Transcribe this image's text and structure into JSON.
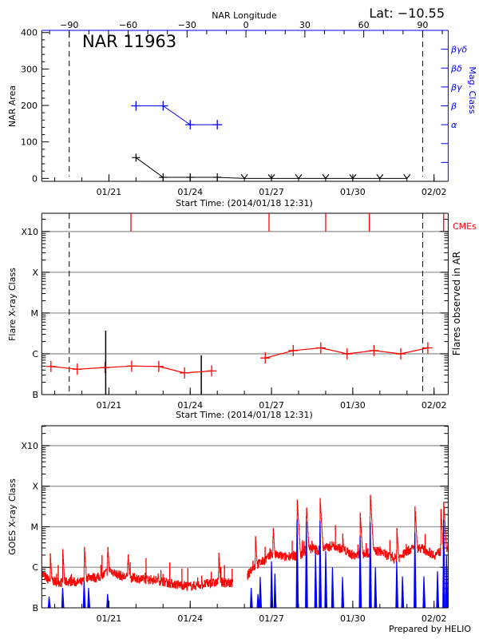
{
  "header": {
    "lat_label": "Lat: −10.55",
    "top_axis_label": "NAR Longitude"
  },
  "footer": {
    "credit": "Prepared by HELIO"
  },
  "colors": {
    "area": "#000000",
    "mag_class": "#0000ff",
    "flare": "#ff0000",
    "cme": "#ff0000",
    "goes_long": "#ff0000",
    "goes_short": "#0000ff",
    "grid": "#999999"
  },
  "chart_data": [
    {
      "type": "line",
      "title": "NAR 11963",
      "xlabel": "Start Time: (2014/01/18 12:31)",
      "x_range": [
        "2014-01-18T12:31",
        "2014-02-02T12:31"
      ],
      "x_ticks": [
        {
          "t": "2014-01-21T00:00",
          "label": "01/21"
        },
        {
          "t": "2014-01-24T00:00",
          "label": "01/24"
        },
        {
          "t": "2014-01-27T00:00",
          "label": "01/27"
        },
        {
          "t": "2014-01-30T00:00",
          "label": "01/30"
        },
        {
          "t": "2014-02-02T00:00",
          "label": "02/02"
        }
      ],
      "top_axis": {
        "label": "NAR Longitude",
        "range": [
          -104,
          103
        ],
        "ticks": [
          {
            "v": -90,
            "label": "−90"
          },
          {
            "v": -60,
            "label": "−60"
          },
          {
            "v": -30,
            "label": "−30"
          },
          {
            "v": 0,
            "label": "0"
          },
          {
            "v": 30,
            "label": "30"
          },
          {
            "v": 60,
            "label": "60"
          },
          {
            "v": 90,
            "label": "90"
          }
        ]
      },
      "limb_longitudes": [
        -90,
        90
      ],
      "ylabel": "NAR Area",
      "ylim": [
        -8,
        406
      ],
      "y_ticks": [
        {
          "v": 0,
          "label": "0"
        },
        {
          "v": 100,
          "label": "100"
        },
        {
          "v": 200,
          "label": "200"
        },
        {
          "v": 300,
          "label": "300"
        },
        {
          "v": 400,
          "label": "400"
        }
      ],
      "y2label": "Mag. Class",
      "y2lim": [
        0,
        8
      ],
      "y2_ticks": [
        {
          "v": 1,
          "label": ""
        },
        {
          "v": 2,
          "label": ""
        },
        {
          "v": 3,
          "label": "α"
        },
        {
          "v": 4,
          "label": "β"
        },
        {
          "v": 5,
          "label": "βγ"
        },
        {
          "v": 6,
          "label": "βδ"
        },
        {
          "v": 7,
          "label": "βγδ"
        }
      ],
      "area": [
        {
          "t": "2014-01-22T00:00",
          "v": 57
        },
        {
          "t": "2014-01-23T00:00",
          "v": 3
        },
        {
          "t": "2014-01-24T00:00",
          "v": 3
        },
        {
          "t": "2014-01-25T00:00",
          "v": 3
        },
        {
          "t": "2014-01-26T00:00",
          "v": 0
        },
        {
          "t": "2014-01-27T00:00",
          "v": 0
        },
        {
          "t": "2014-01-28T00:00",
          "v": 0
        },
        {
          "t": "2014-01-29T00:00",
          "v": 0
        },
        {
          "t": "2014-01-30T00:00",
          "v": 0
        },
        {
          "t": "2014-01-31T00:00",
          "v": 0
        },
        {
          "t": "2014-02-01T00:00",
          "v": 0
        }
      ],
      "mag_class": [
        {
          "t": "2014-01-22T00:00",
          "v": 4
        },
        {
          "t": "2014-01-23T00:00",
          "v": 4
        },
        {
          "t": "2014-01-24T00:00",
          "v": 3
        },
        {
          "t": "2014-01-25T00:00",
          "v": 3
        }
      ]
    },
    {
      "type": "line",
      "xlabel": "Start Time: (2014/01/18 12:31)",
      "x_range": [
        "2014-01-18T12:31",
        "2014-02-02T12:31"
      ],
      "x_ticks": [
        {
          "t": "2014-01-21T00:00",
          "label": "01/21"
        },
        {
          "t": "2014-01-24T00:00",
          "label": "01/24"
        },
        {
          "t": "2014-01-27T00:00",
          "label": "01/27"
        },
        {
          "t": "2014-01-30T00:00",
          "label": "01/30"
        },
        {
          "t": "2014-02-02T00:00",
          "label": "02/02"
        }
      ],
      "ylabel": "Flare X-ray Class",
      "y2label": "Flares observed in AR",
      "yscale": "log",
      "ylim": [
        1e-07,
        0.0028
      ],
      "y_ticks": [
        {
          "v": 1e-07,
          "label": "B"
        },
        {
          "v": 1e-06,
          "label": "C"
        },
        {
          "v": 1e-05,
          "label": "M"
        },
        {
          "v": 0.0001,
          "label": "X"
        },
        {
          "v": 0.001,
          "label": "X10"
        }
      ],
      "grid": true,
      "limb_longitudes": [
        -90,
        90
      ],
      "flare_background": [
        {
          "t": "2014-01-18T20:40",
          "v": 4.9e-07
        },
        {
          "t": "2014-01-19T20:00",
          "v": 4.2e-07
        },
        {
          "t": "2014-01-20T20:30",
          "v": 4.6e-07
        },
        {
          "t": "2014-01-21T20:10",
          "v": 5e-07
        },
        {
          "t": "2014-01-22T20:10",
          "v": 4.9e-07
        },
        {
          "t": "2014-01-23T19:00",
          "v": 3.4e-07
        },
        {
          "t": "2014-01-24T19:00",
          "v": 3.8e-07
        },
        null,
        {
          "t": "2014-01-26T18:30",
          "v": 7.9e-07
        },
        {
          "t": "2014-01-27T19:15",
          "v": 1.2e-06
        },
        {
          "t": "2014-01-28T19:40",
          "v": 1.4e-06
        },
        {
          "t": "2014-01-29T19:00",
          "v": 1e-06
        },
        {
          "t": "2014-01-30T18:45",
          "v": 1.2e-06
        },
        {
          "t": "2014-01-31T18:30",
          "v": 1e-06
        },
        {
          "t": "2014-02-01T18:30",
          "v": 1.4e-06
        }
      ],
      "ar_flares": [
        {
          "t": "2014-01-20T21:10",
          "v": 3.7e-06
        },
        {
          "t": "2014-01-24T09:50",
          "v": 9.1e-07
        }
      ],
      "cme_label": "CMEs",
      "cmes": [
        "2014-01-21T19:30",
        "2014-01-26T21:50",
        "2014-01-29T00:00",
        "2014-01-30T14:40",
        "2014-02-02T08:30"
      ]
    },
    {
      "type": "line",
      "x_range": [
        "2014-01-18T12:31",
        "2014-02-02T12:31"
      ],
      "x_ticks": [
        {
          "t": "2014-01-21T00:00",
          "label": "01/21"
        },
        {
          "t": "2014-01-24T00:00",
          "label": "01/24"
        },
        {
          "t": "2014-01-27T00:00",
          "label": "01/27"
        },
        {
          "t": "2014-01-30T00:00",
          "label": "01/30"
        },
        {
          "t": "2014-02-02T00:00",
          "label": "02/02"
        }
      ],
      "ylabel": "GOES X-ray Class",
      "yscale": "log",
      "ylim": [
        1e-07,
        0.0031
      ],
      "y_ticks": [
        {
          "v": 1e-07,
          "label": "B"
        },
        {
          "v": 1e-06,
          "label": "C"
        },
        {
          "v": 1e-05,
          "label": "M"
        },
        {
          "v": 0.0001,
          "label": "X"
        },
        {
          "v": 0.001,
          "label": "X10"
        }
      ],
      "grid": true,
      "coverage": [
        [
          "2014-01-18T12:31",
          "2014-01-25T14:00"
        ],
        [
          "2014-01-26T02:30",
          "2014-02-02T12:31"
        ]
      ],
      "long_baseline": [
        [
          "2014-01-18T12:31",
          7e-07
        ],
        [
          "2014-01-18T18:00",
          5e-07
        ],
        [
          "2014-01-19T00:00",
          4.5e-07
        ],
        [
          "2014-01-19T06:00",
          4.2e-07
        ],
        [
          "2014-01-19T12:00",
          4.5e-07
        ],
        [
          "2014-01-19T18:00",
          4.3e-07
        ],
        [
          "2014-01-20T00:00",
          4.3e-07
        ],
        [
          "2014-01-20T06:00",
          6e-07
        ],
        [
          "2014-01-20T12:00",
          5.5e-07
        ],
        [
          "2014-01-20T18:00",
          6e-07
        ],
        [
          "2014-01-21T00:00",
          9e-07
        ],
        [
          "2014-01-21T06:00",
          7e-07
        ],
        [
          "2014-01-21T12:00",
          6e-07
        ],
        [
          "2014-01-21T18:00",
          5.5e-07
        ],
        [
          "2014-01-22T00:00",
          5.5e-07
        ],
        [
          "2014-01-22T06:00",
          5e-07
        ],
        [
          "2014-01-22T12:00",
          5e-07
        ],
        [
          "2014-01-22T18:00",
          4.8e-07
        ],
        [
          "2014-01-23T00:00",
          4.5e-07
        ],
        [
          "2014-01-23T06:00",
          4e-07
        ],
        [
          "2014-01-23T12:00",
          3.8e-07
        ],
        [
          "2014-01-23T18:00",
          3.6e-07
        ],
        [
          "2014-01-24T00:00",
          3.4e-07
        ],
        [
          "2014-01-24T06:00",
          3.6e-07
        ],
        [
          "2014-01-24T12:00",
          3.8e-07
        ],
        [
          "2014-01-24T18:00",
          4e-07
        ],
        [
          "2014-01-25T00:00",
          4.3e-07
        ],
        [
          "2014-01-25T06:00",
          4.2e-07
        ],
        [
          "2014-01-25T14:00",
          4e-07
        ],
        [
          "2014-01-26T02:30",
          6e-07
        ],
        [
          "2014-01-26T06:00",
          9e-07
        ],
        [
          "2014-01-26T12:00",
          1.2e-06
        ],
        [
          "2014-01-26T18:00",
          1.5e-06
        ],
        [
          "2014-01-27T00:00",
          2e-06
        ],
        [
          "2014-01-27T06:00",
          2e-06
        ],
        [
          "2014-01-27T12:00",
          1.8e-06
        ],
        [
          "2014-01-27T18:00",
          2e-06
        ],
        [
          "2014-01-28T00:00",
          1.8e-06
        ],
        [
          "2014-01-28T06:00",
          2.5e-06
        ],
        [
          "2014-01-28T12:00",
          3e-06
        ],
        [
          "2014-01-28T18:00",
          2.5e-06
        ],
        [
          "2014-01-29T00:00",
          3e-06
        ],
        [
          "2014-01-29T06:00",
          3.5e-06
        ],
        [
          "2014-01-29T12:00",
          3e-06
        ],
        [
          "2014-01-29T18:00",
          2.5e-06
        ],
        [
          "2014-01-30T00:00",
          2e-06
        ],
        [
          "2014-01-30T06:00",
          2e-06
        ],
        [
          "2014-01-30T12:00",
          2.2e-06
        ],
        [
          "2014-01-30T18:00",
          2.5e-06
        ],
        [
          "2014-01-31T00:00",
          2.5e-06
        ],
        [
          "2014-01-31T06:00",
          2e-06
        ],
        [
          "2014-01-31T12:00",
          1.6e-06
        ],
        [
          "2014-01-31T18:00",
          1.8e-06
        ],
        [
          "2014-02-01T00:00",
          2.5e-06
        ],
        [
          "2014-02-01T06:00",
          3e-06
        ],
        [
          "2014-02-01T12:00",
          3e-06
        ],
        [
          "2014-02-01T18:00",
          2.5e-06
        ],
        [
          "2014-02-02T00:00",
          2e-06
        ],
        [
          "2014-02-02T06:00",
          2.5e-06
        ],
        [
          "2014-02-02T12:31",
          3e-06
        ]
      ],
      "long_peaks": [
        [
          "2014-01-18T20:00",
          2.2e-06
        ],
        [
          "2014-01-19T07:00",
          2.8e-06
        ],
        [
          "2014-01-20T02:10",
          3.5e-06
        ],
        [
          "2014-01-20T22:50",
          3.8e-06
        ],
        [
          "2014-01-21T16:50",
          2.5e-06
        ],
        [
          "2014-01-25T01:10",
          2.5e-06
        ],
        [
          "2014-01-26T09:40",
          6.3e-06
        ],
        [
          "2014-01-27T01:20",
          1.1e-05
        ],
        [
          "2014-01-27T22:40",
          5e-05
        ],
        [
          "2014-01-28T06:50",
          3.5e-05
        ],
        [
          "2014-01-28T19:00",
          5e-05
        ],
        [
          "2014-01-29T14:55",
          7.3e-06
        ],
        [
          "2014-01-30T06:30",
          2.2e-05
        ],
        [
          "2014-01-30T15:25",
          6.6e-05
        ],
        [
          "2014-01-31T14:55",
          1e-05
        ],
        [
          "2014-02-01T07:00",
          3.1e-05
        ],
        [
          "2014-02-02T06:00",
          2.7e-05
        ],
        [
          "2014-02-02T08:30",
          4e-05
        ]
      ],
      "short_peaks": [
        [
          "2014-01-18T19:00",
          1.9e-07
        ],
        [
          "2014-01-19T07:00",
          3.1e-07
        ],
        [
          "2014-01-20T02:00",
          4.6e-07
        ],
        [
          "2014-01-20T06:00",
          3.1e-07
        ],
        [
          "2014-01-20T22:50",
          2.2e-07
        ],
        [
          "2014-01-26T06:00",
          3.1e-07
        ],
        [
          "2014-01-26T12:00",
          2.2e-07
        ],
        [
          "2014-01-26T14:00",
          5.8e-07
        ],
        [
          "2014-01-27T00:00",
          1.4e-06
        ],
        [
          "2014-01-27T03:00",
          7e-07
        ],
        [
          "2014-01-27T22:40",
          1.5e-05
        ],
        [
          "2014-01-28T06:50",
          1.3e-05
        ],
        [
          "2014-01-28T15:00",
          2.2e-06
        ],
        [
          "2014-01-28T19:00",
          1.4e-05
        ],
        [
          "2014-01-29T00:00",
          2.5e-06
        ],
        [
          "2014-01-29T06:00",
          1e-06
        ],
        [
          "2014-01-29T14:55",
          5.8e-07
        ],
        [
          "2014-01-30T06:30",
          6e-06
        ],
        [
          "2014-01-30T15:25",
          1.3e-05
        ],
        [
          "2014-01-30T20:00",
          1e-06
        ],
        [
          "2014-01-31T14:55",
          1.4e-06
        ],
        [
          "2014-01-31T20:00",
          6e-07
        ],
        [
          "2014-02-01T07:00",
          7.3e-06
        ],
        [
          "2014-02-01T15:00",
          6e-07
        ],
        [
          "2014-02-02T03:00",
          8e-07
        ],
        [
          "2014-02-02T08:30",
          1.5e-05
        ],
        [
          "2014-02-02T11:00",
          2e-06
        ]
      ]
    }
  ]
}
